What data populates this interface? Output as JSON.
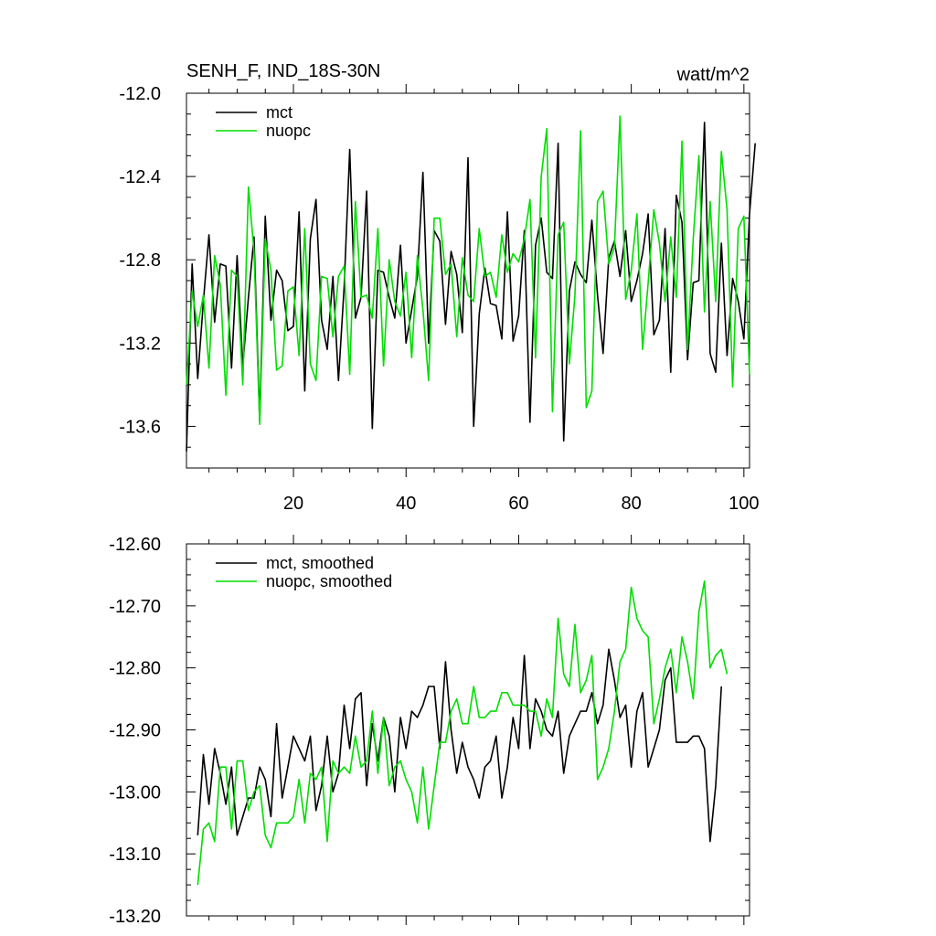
{
  "colors": {
    "mct": "#000000",
    "nuopc": "#00dd00",
    "axis": "#000000",
    "background": "#ffffff"
  },
  "chart_data": [
    {
      "type": "line",
      "title": "SENH_F, IND_18S-30N",
      "units": "watt/m^2",
      "xlim": [
        1,
        101
      ],
      "ylim": [
        -13.8,
        -12.0
      ],
      "x_ticks": [
        20,
        40,
        60,
        80,
        100
      ],
      "x_tick_labels": [
        "20",
        "40",
        "60",
        "80",
        "100"
      ],
      "y_ticks": [
        -13.6,
        -13.2,
        -12.8,
        -12.4,
        -12.0
      ],
      "y_tick_labels": [
        "-13.6",
        "-13.2",
        "-12.8",
        "-12.4",
        "-12.0"
      ],
      "legend_position": "top-left",
      "grid": false,
      "x_start": 1,
      "x_step": 1,
      "series": [
        {
          "name": "mct",
          "color": "#000000",
          "values": [
            -13.72,
            -12.82,
            -13.37,
            -13.0,
            -12.68,
            -13.1,
            -12.82,
            -12.83,
            -13.32,
            -12.78,
            -13.31,
            -12.98,
            -12.69,
            -13.57,
            -12.59,
            -13.09,
            -12.85,
            -12.9,
            -13.14,
            -13.12,
            -12.57,
            -13.43,
            -12.7,
            -12.51,
            -13.09,
            -13.23,
            -12.88,
            -13.38,
            -12.93,
            -12.27,
            -13.08,
            -12.98,
            -12.47,
            -13.61,
            -12.85,
            -12.86,
            -12.98,
            -13.08,
            -12.73,
            -13.2,
            -13.04,
            -12.88,
            -12.38,
            -13.2,
            -12.66,
            -12.71,
            -13.11,
            -12.76,
            -12.87,
            -13.15,
            -12.31,
            -13.6,
            -13.06,
            -12.84,
            -13.01,
            -13.02,
            -13.18,
            -12.57,
            -13.19,
            -13.07,
            -12.66,
            -13.58,
            -12.73,
            -12.6,
            -12.86,
            -12.89,
            -12.24,
            -13.67,
            -12.95,
            -12.81,
            -12.87,
            -12.91,
            -12.61,
            -12.97,
            -13.25,
            -12.79,
            -12.71,
            -12.88,
            -12.66,
            -13.0,
            -12.9,
            -12.77,
            -12.58,
            -13.16,
            -13.09,
            -12.65,
            -13.34,
            -12.49,
            -12.62,
            -13.28,
            -12.91,
            -12.9,
            -12.14,
            -13.25,
            -13.34,
            -12.72,
            -13.26,
            -12.89,
            -13.0,
            -13.18,
            -12.58,
            -12.24
          ]
        },
        {
          "name": "nuopc",
          "color": "#00dd00",
          "values": [
            -13.4,
            -12.95,
            -13.12,
            -12.97,
            -13.32,
            -12.78,
            -12.92,
            -13.45,
            -12.85,
            -12.88,
            -13.4,
            -12.45,
            -12.76,
            -13.59,
            -12.7,
            -12.85,
            -13.33,
            -13.31,
            -12.95,
            -12.93,
            -13.26,
            -12.65,
            -13.3,
            -13.38,
            -12.88,
            -12.89,
            -13.17,
            -12.88,
            -12.83,
            -13.35,
            -12.52,
            -12.98,
            -12.97,
            -13.08,
            -12.65,
            -13.31,
            -12.8,
            -13.0,
            -13.07,
            -12.86,
            -13.27,
            -12.78,
            -13.04,
            -13.38,
            -12.6,
            -12.6,
            -12.87,
            -12.82,
            -13.17,
            -12.79,
            -12.97,
            -13.0,
            -12.65,
            -12.88,
            -12.86,
            -12.98,
            -12.68,
            -12.86,
            -12.77,
            -12.81,
            -12.7,
            -12.51,
            -13.27,
            -12.4,
            -12.17,
            -13.53,
            -12.68,
            -12.62,
            -13.3,
            -12.97,
            -12.18,
            -13.51,
            -13.43,
            -12.52,
            -12.47,
            -12.82,
            -12.74,
            -12.11,
            -12.99,
            -12.85,
            -12.58,
            -13.23,
            -12.91,
            -12.56,
            -12.72,
            -13.0,
            -12.69,
            -12.98,
            -12.23,
            -13.23,
            -12.7,
            -12.3,
            -13.05,
            -12.52,
            -13.0,
            -12.28,
            -12.56,
            -13.41,
            -12.65,
            -12.59,
            -13.35
          ]
        }
      ]
    },
    {
      "type": "line",
      "title": "",
      "xlim": [
        1,
        101
      ],
      "ylim": [
        -13.2,
        -12.6
      ],
      "x_ticks": [
        20,
        40,
        60,
        80,
        100
      ],
      "y_ticks": [
        -13.2,
        -13.1,
        -13.0,
        -12.9,
        -12.8,
        -12.7,
        -12.6
      ],
      "y_tick_labels": [
        "-13.20",
        "-13.10",
        "-13.00",
        "-12.90",
        "-12.80",
        "-12.70",
        "-12.60"
      ],
      "legend_position": "top-left",
      "grid": false,
      "x_start": 3,
      "x_step": 1,
      "series": [
        {
          "name": "mct, smoothed",
          "color": "#000000",
          "values": [
            -13.07,
            -12.94,
            -13.02,
            -12.93,
            -12.97,
            -13.02,
            -12.96,
            -13.07,
            -13.04,
            -13.01,
            -13.01,
            -12.96,
            -12.98,
            -13.04,
            -12.89,
            -13.01,
            -12.96,
            -12.91,
            -12.93,
            -12.95,
            -12.91,
            -13.03,
            -12.99,
            -12.91,
            -13.0,
            -12.97,
            -12.86,
            -12.93,
            -12.85,
            -12.84,
            -12.99,
            -12.89,
            -12.95,
            -12.88,
            -12.91,
            -13.0,
            -12.88,
            -12.93,
            -12.87,
            -12.88,
            -12.86,
            -12.83,
            -12.83,
            -12.93,
            -12.79,
            -12.9,
            -12.97,
            -12.92,
            -12.96,
            -12.98,
            -13.01,
            -12.96,
            -12.95,
            -12.91,
            -13.01,
            -12.96,
            -12.88,
            -12.93,
            -12.78,
            -12.93,
            -12.85,
            -12.87,
            -12.9,
            -12.91,
            -12.87,
            -12.97,
            -12.91,
            -12.89,
            -12.87,
            -12.87,
            -12.84,
            -12.89,
            -12.86,
            -12.77,
            -12.82,
            -12.88,
            -12.86,
            -12.96,
            -12.87,
            -12.84,
            -12.96,
            -12.93,
            -12.9,
            -12.82,
            -12.8,
            -12.92,
            -12.92,
            -12.92,
            -12.91,
            -12.91,
            -12.93,
            -13.08,
            -12.99,
            -12.83
          ]
        },
        {
          "name": "nuopc, smoothed",
          "color": "#00dd00",
          "values": [
            -13.15,
            -13.06,
            -13.05,
            -13.08,
            -12.96,
            -12.96,
            -13.06,
            -12.95,
            -12.95,
            -13.03,
            -13.0,
            -12.99,
            -13.07,
            -13.09,
            -13.05,
            -13.05,
            -13.05,
            -13.04,
            -12.98,
            -13.05,
            -12.97,
            -12.98,
            -12.96,
            -13.08,
            -12.95,
            -12.97,
            -12.96,
            -12.97,
            -12.91,
            -12.96,
            -12.95,
            -12.87,
            -12.97,
            -12.88,
            -12.99,
            -12.96,
            -12.95,
            -12.98,
            -13.0,
            -13.05,
            -12.96,
            -13.06,
            -12.99,
            -12.92,
            -12.92,
            -12.87,
            -12.85,
            -12.89,
            -12.89,
            -12.83,
            -12.88,
            -12.88,
            -12.87,
            -12.87,
            -12.84,
            -12.84,
            -12.86,
            -12.86,
            -12.86,
            -12.87,
            -12.87,
            -12.91,
            -12.85,
            -12.88,
            -12.72,
            -12.81,
            -12.83,
            -12.73,
            -12.84,
            -12.82,
            -12.78,
            -12.98,
            -12.96,
            -12.93,
            -12.87,
            -12.79,
            -12.77,
            -12.67,
            -12.72,
            -12.74,
            -12.75,
            -12.89,
            -12.85,
            -12.8,
            -12.77,
            -12.84,
            -12.75,
            -12.79,
            -12.85,
            -12.71,
            -12.66,
            -12.8,
            -12.78,
            -12.77,
            -12.81
          ]
        }
      ]
    }
  ]
}
